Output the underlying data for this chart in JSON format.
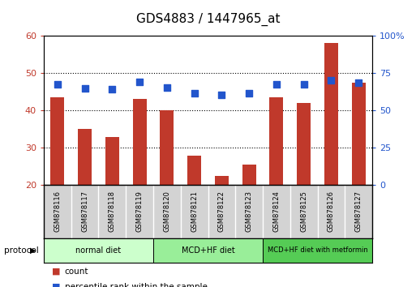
{
  "title": "GDS4883 / 1447965_at",
  "samples": [
    "GSM878116",
    "GSM878117",
    "GSM878118",
    "GSM878119",
    "GSM878120",
    "GSM878121",
    "GSM878122",
    "GSM878123",
    "GSM878124",
    "GSM878125",
    "GSM878126",
    "GSM878127"
  ],
  "counts": [
    43.5,
    35.0,
    33.0,
    43.0,
    40.0,
    28.0,
    22.5,
    25.5,
    43.5,
    42.0,
    58.0,
    47.5
  ],
  "percentiles": [
    67.5,
    65.0,
    64.5,
    69.0,
    65.5,
    61.5,
    60.5,
    61.5,
    67.5,
    67.5,
    70.0,
    68.5
  ],
  "bar_color": "#c0392b",
  "dot_color": "#2255cc",
  "ylim_left": [
    20,
    60
  ],
  "ylim_right": [
    0,
    100
  ],
  "yticks_left": [
    20,
    30,
    40,
    50,
    60
  ],
  "yticks_right": [
    0,
    25,
    50,
    75,
    100
  ],
  "ytick_labels_right": [
    "0",
    "25",
    "50",
    "75",
    "100%"
  ],
  "hgrid_lines": [
    30,
    40,
    50
  ],
  "groups": [
    {
      "label": "normal diet",
      "start": 0,
      "end": 4,
      "color": "#ccffcc"
    },
    {
      "label": "MCD+HF diet",
      "start": 4,
      "end": 8,
      "color": "#99ee99"
    },
    {
      "label": "MCD+HF diet with metformin",
      "start": 8,
      "end": 12,
      "color": "#55cc55"
    }
  ],
  "legend_count_label": "count",
  "legend_pct_label": "percentile rank within the sample",
  "protocol_label": "protocol",
  "title_fontsize": 11,
  "tick_fontsize": 8,
  "background_color": "#ffffff",
  "plot_bg_color": "#ffffff",
  "bar_width": 0.5,
  "dot_size": 28,
  "xlabel_bg_color": "#d3d3d3"
}
